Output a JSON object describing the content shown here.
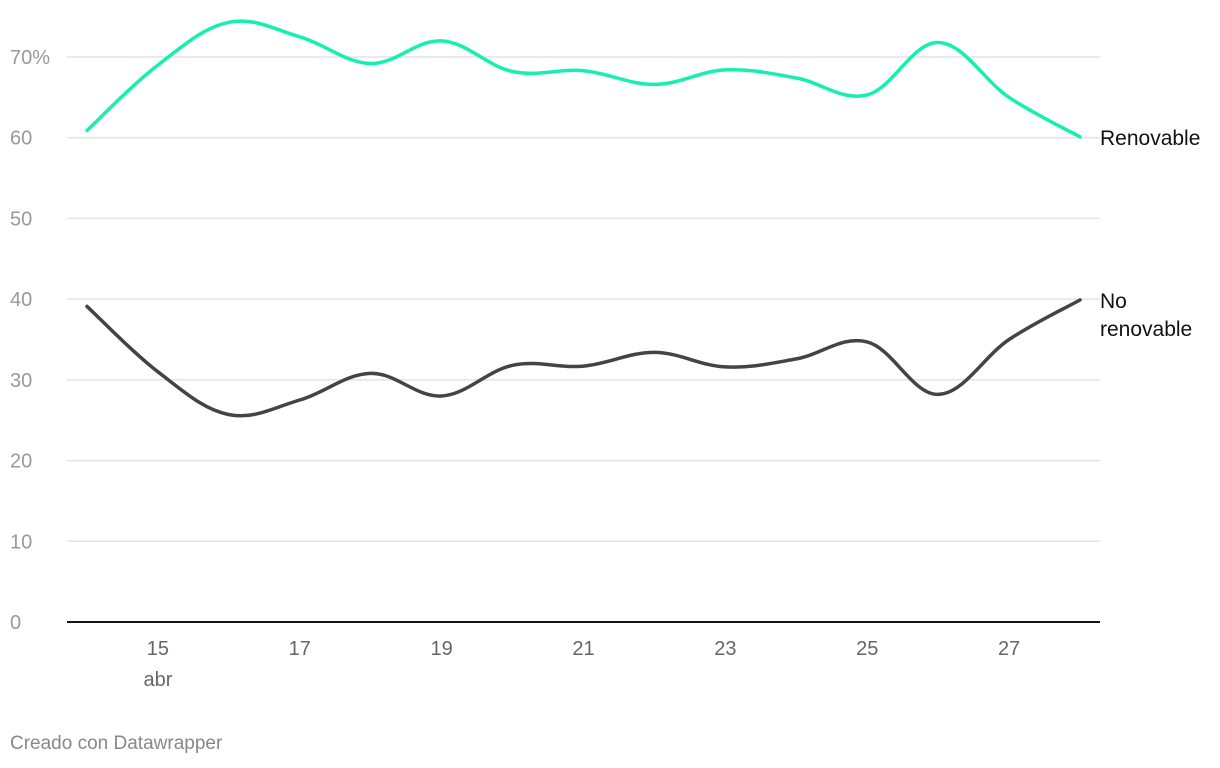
{
  "chart_data": {
    "type": "line",
    "x": [
      14,
      15,
      16,
      17,
      18,
      19,
      20,
      21,
      22,
      23,
      24,
      25,
      26,
      27,
      28
    ],
    "x_ticks": [
      {
        "value": 15,
        "label": "15",
        "sublabel": "abr"
      },
      {
        "value": 17,
        "label": "17",
        "sublabel": ""
      },
      {
        "value": 19,
        "label": "19",
        "sublabel": ""
      },
      {
        "value": 21,
        "label": "21",
        "sublabel": ""
      },
      {
        "value": 23,
        "label": "23",
        "sublabel": ""
      },
      {
        "value": 25,
        "label": "25",
        "sublabel": ""
      },
      {
        "value": 27,
        "label": "27",
        "sublabel": ""
      }
    ],
    "y_ticks": [
      {
        "value": 0,
        "label": "0"
      },
      {
        "value": 10,
        "label": "10"
      },
      {
        "value": 20,
        "label": "20"
      },
      {
        "value": 30,
        "label": "30"
      },
      {
        "value": 40,
        "label": "40"
      },
      {
        "value": 50,
        "label": "50"
      },
      {
        "value": 60,
        "label": "60"
      },
      {
        "value": 70,
        "label": "70%"
      }
    ],
    "ylim": [
      0,
      70
    ],
    "xlim": [
      14,
      28
    ],
    "grid": true,
    "series": [
      {
        "name": "Renovable",
        "label_lines": [
          "Renovable"
        ],
        "color": "#15f0b0",
        "values": [
          60.9,
          69.0,
          74.3,
          72.5,
          69.2,
          72.0,
          68.2,
          68.3,
          66.6,
          68.4,
          67.4,
          65.3,
          71.8,
          65.0,
          60.1
        ]
      },
      {
        "name": "No renovable",
        "label_lines": [
          "No",
          "renovable"
        ],
        "color": "#444444",
        "values": [
          39.1,
          31.0,
          25.7,
          27.5,
          30.8,
          28.0,
          31.8,
          31.7,
          33.4,
          31.6,
          32.6,
          34.7,
          28.2,
          35.0,
          39.9
        ]
      }
    ]
  },
  "footer": {
    "credit": "Creado con Datawrapper"
  }
}
